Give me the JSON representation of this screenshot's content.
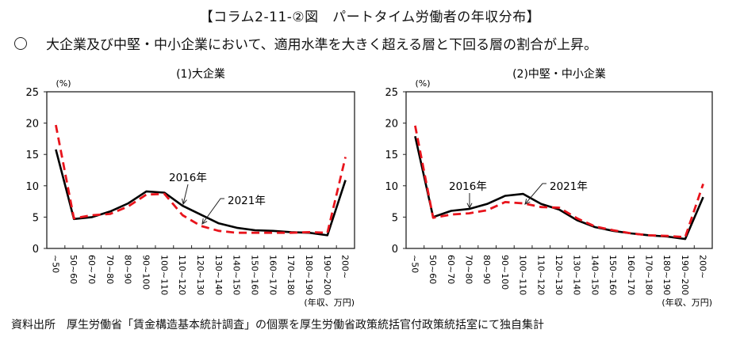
{
  "header": {
    "title": "【コラム2-11-②図　パートタイム労働者の年収分布】",
    "summary": "大企業及び中堅・中小企業において、適用水準を大きく超える層と下回る層の割合が上昇。"
  },
  "footer": {
    "source": "資料出所　厚生労働省「賃金構造基本統計調査」の個票を厚生労働省政策統括官付政策統括室にて独自集計"
  },
  "styles": {
    "line_2016_color": "#000000",
    "line_2021_color": "#e8141c"
  },
  "chart_data": [
    {
      "type": "line",
      "title": "(1)大企業",
      "ylabel": "(%)",
      "xlabel": "(年収、万円)",
      "ylim": [
        0,
        25
      ],
      "yticks": [
        "0",
        "5",
        "10",
        "15",
        "20",
        "25"
      ],
      "grid": false,
      "categories": [
        "~50",
        "50~60",
        "60~70",
        "70~80",
        "80~90",
        "90~100",
        "100~110",
        "110~120",
        "120~130",
        "130~140",
        "140~150",
        "150~160",
        "160~170",
        "170~180",
        "180~190",
        "190~200",
        "200~"
      ],
      "series": [
        {
          "name": "2016年",
          "style": "solid",
          "values": [
            15.8,
            4.7,
            5.0,
            5.9,
            7.2,
            9.1,
            8.9,
            6.8,
            5.4,
            4.0,
            3.3,
            2.9,
            2.8,
            2.6,
            2.5,
            2.1,
            10.9
          ]
        },
        {
          "name": "2021年",
          "style": "dashed",
          "values": [
            19.7,
            4.8,
            5.3,
            5.5,
            6.7,
            8.6,
            8.7,
            5.3,
            3.6,
            2.8,
            2.5,
            2.5,
            2.5,
            2.5,
            2.6,
            2.5,
            14.6
          ]
        }
      ],
      "annotations": [
        {
          "text": "2016年",
          "series": "2016年"
        },
        {
          "text": "2021年",
          "series": "2021年"
        }
      ]
    },
    {
      "type": "line",
      "title": "(2)中堅・中小企業",
      "ylabel": "(%)",
      "xlabel": "(年収、万円)",
      "ylim": [
        0,
        25
      ],
      "yticks": [
        "0",
        "5",
        "10",
        "15",
        "20",
        "25"
      ],
      "grid": false,
      "categories": [
        "~50",
        "50~60",
        "60~70",
        "70~80",
        "80~90",
        "90~100",
        "100~110",
        "110~120",
        "120~130",
        "130~140",
        "140~150",
        "150~160",
        "160~170",
        "170~180",
        "180~190",
        "190~200",
        "200~"
      ],
      "series": [
        {
          "name": "2016年",
          "style": "solid",
          "values": [
            17.9,
            5.0,
            6.0,
            6.3,
            7.1,
            8.4,
            8.7,
            7.1,
            6.2,
            4.5,
            3.4,
            2.8,
            2.4,
            2.1,
            1.9,
            1.5,
            8.2
          ]
        },
        {
          "name": "2021年",
          "style": "dashed",
          "values": [
            19.6,
            4.9,
            5.4,
            5.6,
            6.1,
            7.4,
            7.2,
            6.6,
            6.5,
            4.8,
            3.5,
            2.9,
            2.4,
            2.1,
            2.0,
            1.8,
            10.3
          ]
        }
      ],
      "annotations": [
        {
          "text": "2016年",
          "series": "2016年"
        },
        {
          "text": "2021年",
          "series": "2021年"
        }
      ]
    }
  ]
}
